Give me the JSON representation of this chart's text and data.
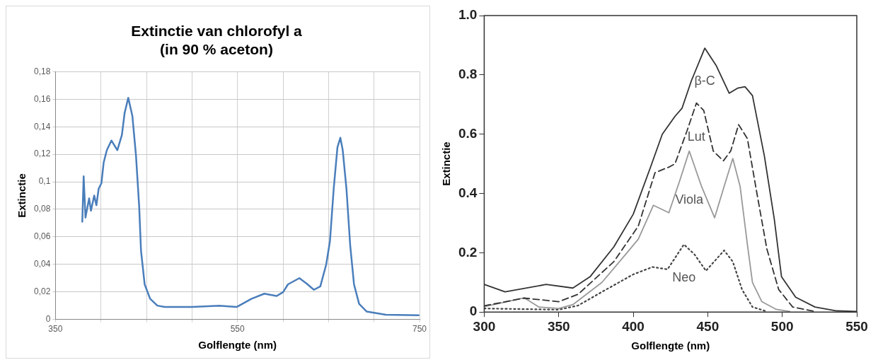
{
  "chart_data": [
    {
      "type": "line",
      "title": "Extinctie van chlorofyl a\n(in 90 % aceton)",
      "xlabel": "Golflengte (nm)",
      "ylabel": "Extinctie",
      "x": [
        379.5,
        381,
        383,
        387,
        389,
        392.6,
        395,
        397.5,
        400.5,
        403,
        406.5,
        411.5,
        418,
        423,
        426,
        430,
        434.5,
        438.5,
        442,
        444,
        448,
        454,
        462,
        470,
        500,
        530,
        549,
        565.5,
        579.5,
        593,
        600,
        605.5,
        618,
        626,
        634,
        641,
        647.5,
        651.6,
        655.7,
        659.8,
        663,
        665.6,
        669.7,
        673.8,
        678,
        683.6,
        692,
        713,
        749
      ],
      "values": [
        0.071,
        0.104,
        0.074,
        0.088,
        0.079,
        0.09,
        0.083,
        0.095,
        0.099,
        0.114,
        0.123,
        0.13,
        0.123,
        0.134,
        0.15,
        0.161,
        0.148,
        0.119,
        0.082,
        0.05,
        0.0255,
        0.015,
        0.01,
        0.009,
        0.009,
        0.01,
        0.009,
        0.015,
        0.0187,
        0.017,
        0.0198,
        0.0255,
        0.03,
        0.026,
        0.0215,
        0.024,
        0.04,
        0.057,
        0.095,
        0.125,
        0.132,
        0.123,
        0.095,
        0.054,
        0.0255,
        0.0113,
        0.0057,
        0.0034,
        0.003
      ],
      "color": "#4a7ebb",
      "xlim": [
        350,
        750
      ],
      "xticks": [
        350,
        {
          "value": 400,
          "label": null
        },
        {
          "value": 450,
          "label": null
        },
        {
          "value": 500,
          "label": null
        },
        550,
        {
          "value": 600,
          "label": null
        },
        {
          "value": 650,
          "label": null
        },
        {
          "value": 700,
          "label": null
        },
        750
      ],
      "ylim": [
        0,
        0.18
      ],
      "yticks": [
        0,
        {
          "value": 0.02,
          "label": "0,02"
        },
        {
          "value": 0.04,
          "label": "0,04"
        },
        {
          "value": 0.06,
          "label": "0,06"
        },
        {
          "value": 0.08,
          "label": "0,08"
        },
        {
          "value": 0.1,
          "label": "0,1"
        },
        {
          "value": 0.12,
          "label": "0,12"
        },
        {
          "value": 0.14,
          "label": "0,14"
        },
        {
          "value": 0.16,
          "label": "0,16"
        },
        {
          "value": 0.18,
          "label": "0,18"
        }
      ],
      "grid": true
    },
    {
      "type": "line",
      "xlabel": "Golflengte (nm)",
      "ylabel": "Extinctie",
      "xlim": [
        300,
        550
      ],
      "xticks": [
        300,
        350,
        400,
        450,
        500,
        550
      ],
      "ylim": [
        0,
        1
      ],
      "yticks": [
        0,
        0.2,
        0.4,
        0.6,
        0.8,
        {
          "value": 1,
          "label": "1.0"
        }
      ],
      "series": [
        {
          "name": "β-C",
          "color": "#333333",
          "line_style": "solid",
          "x": [
            300,
            314,
            341.5,
            359.5,
            371,
            387,
            400,
            411.7,
            419.5,
            428,
            432.7,
            439,
            448,
            455.6,
            464.4,
            470,
            475,
            480,
            488,
            494.6,
            499.5,
            509,
            522,
            536.6,
            550
          ],
          "values": [
            0.093,
            0.068,
            0.093,
            0.081,
            0.119,
            0.22,
            0.33,
            0.49,
            0.6,
            0.66,
            0.687,
            0.78,
            0.89,
            0.832,
            0.738,
            0.755,
            0.76,
            0.73,
            0.526,
            0.315,
            0.119,
            0.05,
            0.017,
            0.004,
            0.002
          ]
        },
        {
          "name": "Lut",
          "color": "#333333",
          "line_style": "dashed",
          "x": [
            300,
            326.8,
            350,
            363,
            387,
            403.4,
            414.6,
            424.4,
            428,
            436,
            442.4,
            447.3,
            453.7,
            460.5,
            465.4,
            470.7,
            476.6,
            483,
            489.7,
            497.6,
            507,
            522
          ],
          "values": [
            0.021,
            0.047,
            0.035,
            0.06,
            0.17,
            0.29,
            0.47,
            0.49,
            0.5,
            0.61,
            0.705,
            0.68,
            0.543,
            0.51,
            0.543,
            0.632,
            0.585,
            0.4,
            0.212,
            0.076,
            0.017,
            0.002
          ]
        },
        {
          "name": "Viola",
          "color": "#999999",
          "line_style": "solid",
          "x": [
            300,
            326.8,
            336.6,
            350,
            359.5,
            379,
            395,
            403.4,
            413.5,
            423.9,
            431,
            437.6,
            445.8,
            454.6,
            461,
            466.8,
            471.7,
            476.6,
            480,
            486.3,
            496,
            505
          ],
          "values": [
            0.018,
            0.048,
            0.017,
            0.012,
            0.025,
            0.1,
            0.195,
            0.246,
            0.36,
            0.335,
            0.44,
            0.543,
            0.424,
            0.318,
            0.424,
            0.518,
            0.424,
            0.228,
            0.1,
            0.035,
            0.009,
            0.002
          ]
        },
        {
          "name": "Neo",
          "color": "#444444",
          "line_style": "dotted",
          "x": [
            300,
            350,
            363,
            379,
            400,
            413,
            423,
            434,
            441,
            448.8,
            461,
            466.8,
            473,
            480,
            489.7
          ],
          "values": [
            0.012,
            0.008,
            0.022,
            0.068,
            0.127,
            0.152,
            0.144,
            0.228,
            0.195,
            0.139,
            0.208,
            0.17,
            0.076,
            0.017,
            0.002
          ]
        }
      ],
      "grid": false,
      "legend": false
    }
  ]
}
